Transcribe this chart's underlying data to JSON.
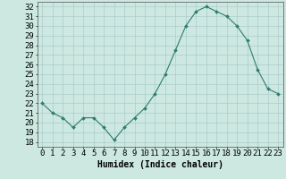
{
  "x": [
    0,
    1,
    2,
    3,
    4,
    5,
    6,
    7,
    8,
    9,
    10,
    11,
    12,
    13,
    14,
    15,
    16,
    17,
    18,
    19,
    20,
    21,
    22,
    23
  ],
  "y": [
    22.0,
    21.0,
    20.5,
    19.5,
    20.5,
    20.5,
    19.5,
    18.2,
    19.5,
    20.5,
    21.5,
    23.0,
    25.0,
    27.5,
    30.0,
    31.5,
    32.0,
    31.5,
    31.0,
    30.0,
    28.5,
    25.5,
    23.5,
    23.0
  ],
  "line_color": "#2e7d6e",
  "marker": "D",
  "marker_size": 2,
  "bg_color": "#cce8e0",
  "grid_color": "#aacccc",
  "xlabel": "Humidex (Indice chaleur)",
  "ylabel_ticks": [
    18,
    19,
    20,
    21,
    22,
    23,
    24,
    25,
    26,
    27,
    28,
    29,
    30,
    31,
    32
  ],
  "ylim": [
    17.5,
    32.5
  ],
  "xlim": [
    -0.5,
    23.5
  ],
  "xlabel_fontsize": 7,
  "tick_fontsize": 6.5
}
